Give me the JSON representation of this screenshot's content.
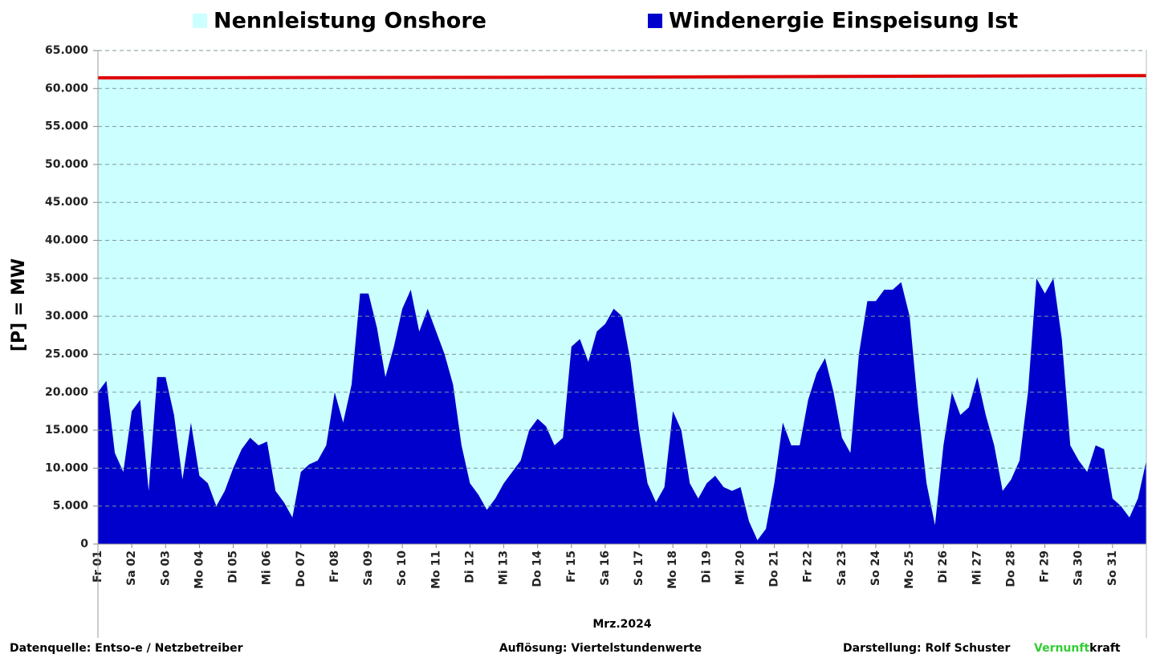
{
  "chart_data": {
    "type": "area",
    "y_label": "[P] = MW",
    "x_label": "Mrz.2024",
    "xlim": [
      0,
      31
    ],
    "xticks": [
      {
        "value": 0,
        "label": "Fr 01"
      },
      {
        "value": 1,
        "label": "Sa 02"
      },
      {
        "value": 2,
        "label": "So 03"
      },
      {
        "value": 3,
        "label": "Mo 04"
      },
      {
        "value": 4,
        "label": "Di 05"
      },
      {
        "value": 5,
        "label": "Mi 06"
      },
      {
        "value": 6,
        "label": "Do 07"
      },
      {
        "value": 7,
        "label": "Fr 08"
      },
      {
        "value": 8,
        "label": "Sa 09"
      },
      {
        "value": 9,
        "label": "So 10"
      },
      {
        "value": 10,
        "label": "Mo 11"
      },
      {
        "value": 11,
        "label": "Di 12"
      },
      {
        "value": 12,
        "label": "Mi 13"
      },
      {
        "value": 13,
        "label": "Do 14"
      },
      {
        "value": 14,
        "label": "Fr 15"
      },
      {
        "value": 15,
        "label": "Sa 16"
      },
      {
        "value": 16,
        "label": "So 17"
      },
      {
        "value": 17,
        "label": "Mo 18"
      },
      {
        "value": 18,
        "label": "Di 19"
      },
      {
        "value": 19,
        "label": "Mi 20"
      },
      {
        "value": 20,
        "label": "Do 21"
      },
      {
        "value": 21,
        "label": "Fr 22"
      },
      {
        "value": 22,
        "label": "Sa 23"
      },
      {
        "value": 23,
        "label": "So 24"
      },
      {
        "value": 24,
        "label": "Mo 25"
      },
      {
        "value": 25,
        "label": "Di 26"
      },
      {
        "value": 26,
        "label": "Mi 27"
      },
      {
        "value": 27,
        "label": "Do 28"
      },
      {
        "value": 28,
        "label": "Fr 29"
      },
      {
        "value": 29,
        "label": "Sa 30"
      },
      {
        "value": 30,
        "label": "So 31"
      }
    ],
    "ylim": [
      0,
      65000
    ],
    "yticks": [
      0,
      {
        "value": 5000,
        "label": "5.000"
      },
      {
        "value": 10000,
        "label": "10.000"
      },
      {
        "value": 15000,
        "label": "15.000"
      },
      {
        "value": 20000,
        "label": "20.000"
      },
      {
        "value": 25000,
        "label": "25.000"
      },
      {
        "value": 30000,
        "label": "30.000"
      },
      {
        "value": 35000,
        "label": "35.000"
      },
      {
        "value": 40000,
        "label": "40.000"
      },
      {
        "value": 45000,
        "label": "45.000"
      },
      {
        "value": 50000,
        "label": "50.000"
      },
      {
        "value": 55000,
        "label": "55.000"
      },
      {
        "value": 60000,
        "label": "60.000"
      },
      {
        "value": 65000,
        "label": "65.000"
      }
    ],
    "grid": true,
    "series": [
      {
        "name": "Nennleistung Onshore",
        "color": "#ccffff",
        "edge_color": "#e00000",
        "x": [
          0,
          15.5,
          31
        ],
        "values": [
          61400,
          61500,
          61700
        ]
      },
      {
        "name": "Windenergie Einspeisung Ist",
        "color": "#0000cc",
        "x": [
          0,
          0.25,
          0.5,
          0.75,
          1,
          1.25,
          1.5,
          1.75,
          2,
          2.25,
          2.5,
          2.75,
          3,
          3.25,
          3.5,
          3.75,
          4,
          4.25,
          4.5,
          4.75,
          5,
          5.25,
          5.5,
          5.75,
          6,
          6.25,
          6.5,
          6.75,
          7,
          7.25,
          7.5,
          7.75,
          8,
          8.25,
          8.5,
          8.75,
          9,
          9.25,
          9.5,
          9.75,
          10,
          10.25,
          10.5,
          10.75,
          11,
          11.25,
          11.5,
          11.75,
          12,
          12.25,
          12.5,
          12.75,
          13,
          13.25,
          13.5,
          13.75,
          14,
          14.25,
          14.5,
          14.75,
          15,
          15.25,
          15.5,
          15.75,
          16,
          16.25,
          16.5,
          16.75,
          17,
          17.25,
          17.5,
          17.75,
          18,
          18.25,
          18.5,
          18.75,
          19,
          19.25,
          19.5,
          19.75,
          20,
          20.25,
          20.5,
          20.75,
          21,
          21.25,
          21.5,
          21.75,
          22,
          22.25,
          22.5,
          22.75,
          23,
          23.25,
          23.5,
          23.75,
          24,
          24.25,
          24.5,
          24.75,
          25,
          25.25,
          25.5,
          25.75,
          26,
          26.25,
          26.5,
          26.75,
          27,
          27.25,
          27.5,
          27.75,
          28,
          28.25,
          28.5,
          28.75,
          29,
          29.25,
          29.5,
          29.75,
          30,
          30.25,
          30.5,
          30.75,
          31
        ],
        "values": [
          20000,
          21500,
          12000,
          9500,
          17500,
          19000,
          7000,
          22000,
          22000,
          17000,
          8500,
          16000,
          9000,
          8000,
          5000,
          7000,
          10000,
          12500,
          14000,
          13000,
          13500,
          7000,
          5500,
          3500,
          9500,
          10500,
          11000,
          13000,
          20000,
          16000,
          21000,
          33000,
          33000,
          28500,
          22000,
          26000,
          31000,
          33500,
          28000,
          31000,
          28000,
          25000,
          21000,
          13000,
          8000,
          6500,
          4500,
          6000,
          8000,
          9500,
          11000,
          15000,
          16500,
          15500,
          13000,
          14000,
          26000,
          27000,
          24000,
          28000,
          29000,
          31000,
          30000,
          24000,
          15000,
          8000,
          5500,
          7500,
          17500,
          15000,
          8000,
          6000,
          8000,
          9000,
          7500,
          7000,
          7500,
          3000,
          500,
          2000,
          8000,
          16000,
          13000,
          13000,
          19000,
          22500,
          24500,
          20000,
          14000,
          12000,
          25000,
          32000,
          32000,
          33500,
          33500,
          34500,
          30000,
          18000,
          8000,
          2500,
          13000,
          20000,
          17000,
          18000,
          22000,
          17000,
          13000,
          7000,
          8500,
          11000,
          20000,
          35000,
          33000,
          35000,
          27000,
          13000,
          11000,
          9500,
          13000,
          12500,
          6000,
          5000,
          3500,
          6000,
          11000
        ]
      }
    ],
    "footer": {
      "source": "Datenquelle:  Entso-e  / Netzbetreiber",
      "resolution": "Auflösung: Viertelstundenwerte",
      "author": "Darstellung:  Rolf Schuster",
      "brand_a": "Vernunft",
      "brand_b": "kraft"
    }
  }
}
